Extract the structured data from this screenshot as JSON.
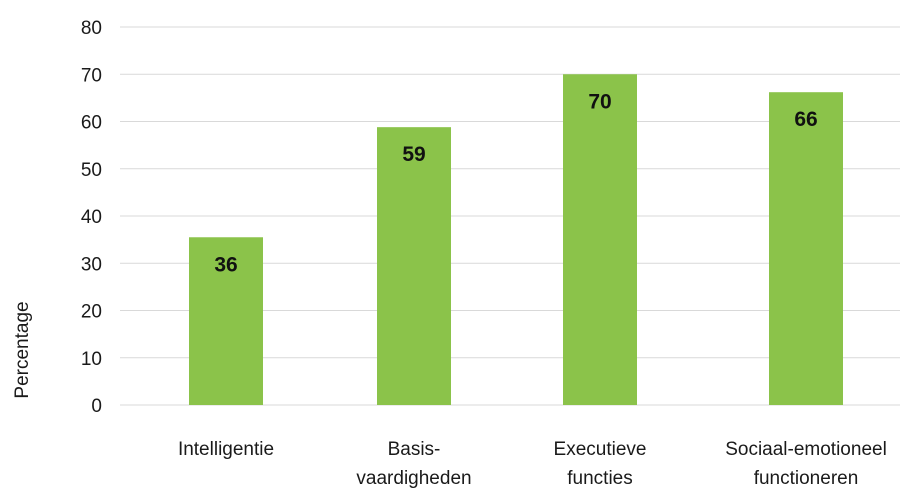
{
  "chart_data": {
    "type": "bar",
    "categories": [
      [
        "Intelligentie"
      ],
      [
        "Basis-",
        "vaardigheden"
      ],
      [
        "Executieve",
        "functies"
      ],
      [
        "Sociaal-emotioneel",
        "functioneren"
      ]
    ],
    "values": [
      35.5,
      58.8,
      70,
      66.2
    ],
    "data_labels": [
      "36",
      "59",
      "70",
      "66"
    ],
    "ylabel": "Percentage",
    "xlabel": "",
    "ylim": [
      0,
      80
    ],
    "yticks": [
      0,
      10,
      20,
      30,
      40,
      50,
      60,
      70,
      80
    ],
    "grid": true,
    "bar_color": "#8bc34a",
    "grid_color": "#d9d9d9"
  }
}
